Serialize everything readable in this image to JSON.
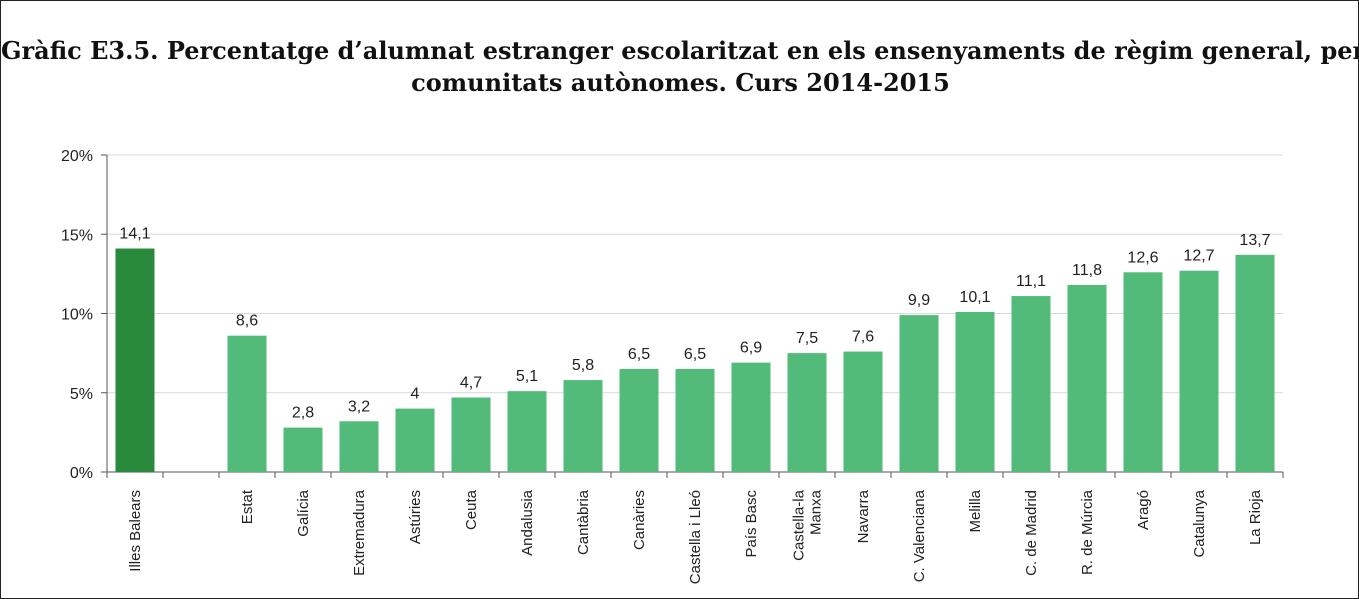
{
  "title_line1": "Gràfic E3.5. Percentatge d’alumnat estranger escolaritzat en els ensenyaments de règim general, per",
  "title_line2": "comunitats autònomes. Curs 2014-2015",
  "colors": {
    "highlight": "#2a8a3c",
    "bar": "#52bb7a",
    "grid": "#d9d9d9",
    "axis": "#555555"
  },
  "chart_data": {
    "type": "bar",
    "title": "Gràfic E3.5. Percentatge d’alumnat estranger escolaritzat en els ensenyaments de règim general, per comunitats autònomes. Curs 2014-2015",
    "ylim": [
      0,
      20
    ],
    "yticks": [
      "0%",
      "5%",
      "10%",
      "15%",
      "20%"
    ],
    "grid": true,
    "legend": "none",
    "categories": [
      [
        "Illes Balears"
      ],
      [],
      [
        "Estat"
      ],
      [
        "Galícia"
      ],
      [
        "Extremadura"
      ],
      [
        "Astúries"
      ],
      [
        "Ceuta"
      ],
      [
        "Andalusia"
      ],
      [
        "Cantàbria"
      ],
      [
        "Canàries"
      ],
      [
        "Castella i Lleó"
      ],
      [
        "País Basc"
      ],
      [
        "Castella-la",
        "Manxa"
      ],
      [
        "Navarra"
      ],
      [
        "C. Valenciana"
      ],
      [
        "Melilla"
      ],
      [
        "C. de Madrid"
      ],
      [
        "R. de Múrcia"
      ],
      [
        "Aragó"
      ],
      [
        "Catalunya"
      ],
      [
        "La Rioja"
      ]
    ],
    "values": [
      14.1,
      null,
      8.6,
      2.8,
      3.2,
      4,
      4.7,
      5.1,
      5.8,
      6.5,
      6.5,
      6.9,
      7.5,
      7.6,
      9.9,
      10.1,
      11.1,
      11.8,
      12.6,
      12.7,
      13.7
    ],
    "labels": [
      "14,1",
      "",
      "8,6",
      "2,8",
      "3,2",
      "4",
      "4,7",
      "5,1",
      "5,8",
      "6,5",
      "6,5",
      "6,9",
      "7,5",
      "7,6",
      "9,9",
      "10,1",
      "11,1",
      "11,8",
      "12,6",
      "12,7",
      "13,7"
    ],
    "highlight_index": 0
  }
}
